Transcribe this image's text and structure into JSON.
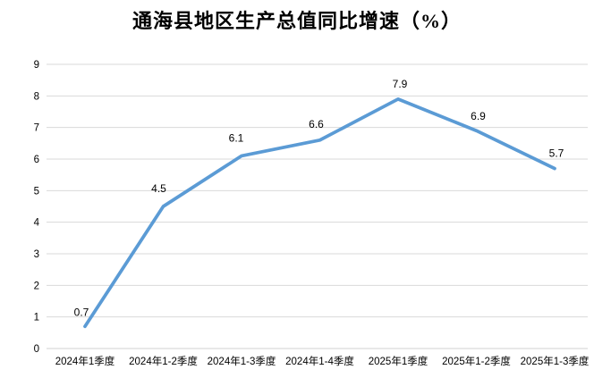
{
  "title": "通海县地区生产总值同比增速（%）",
  "chart_data": {
    "type": "line",
    "title": "通海县地区生产总值同比增速（%）",
    "categories": [
      "2024年1季度",
      "2024年1-2季度",
      "2024年1-3季度",
      "2024年1-4季度",
      "2025年1季度",
      "2025年1-2季度",
      "2025年1-3季度"
    ],
    "values": [
      0.7,
      4.5,
      6.1,
      6.6,
      7.9,
      6.9,
      5.7
    ],
    "data_labels": [
      "0.7",
      "4.5",
      "6.1",
      "6.6",
      "7.9",
      "6.9",
      "5.7"
    ],
    "xlabel": "",
    "ylabel": "",
    "ylim": [
      0,
      9
    ],
    "ytick_step": 1,
    "yticks": [
      "0",
      "1",
      "2",
      "3",
      "4",
      "5",
      "6",
      "7",
      "8",
      "9"
    ],
    "grid": true,
    "legend": "none",
    "colors": {
      "line": "#5B9BD5",
      "gridline": "#D9D9D9",
      "axis_line": "#D0D0D0",
      "text": "#000000",
      "background": "#FFFFFF"
    }
  }
}
